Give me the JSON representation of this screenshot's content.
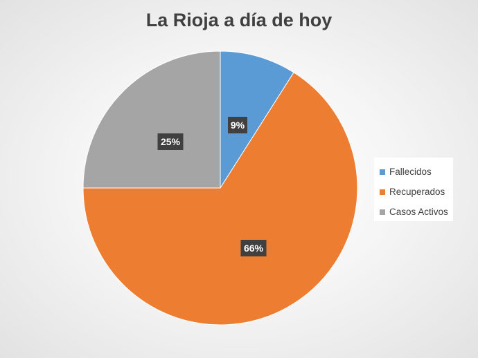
{
  "chart_data": {
    "type": "pie",
    "title": "La Rioja a día de hoy",
    "categories": [
      "Fallecidos",
      "Recuperados",
      "Casos Activos"
    ],
    "values": [
      9,
      66,
      25
    ],
    "labels": [
      "9%",
      "66%",
      "25%"
    ],
    "colors": [
      "#5b9bd5",
      "#ed7d31",
      "#a5a5a5"
    ],
    "label_background": "#404040",
    "label_color": "#ffffff",
    "legend_placement": "right",
    "start_angle_deg": 0,
    "direction": "clockwise"
  }
}
